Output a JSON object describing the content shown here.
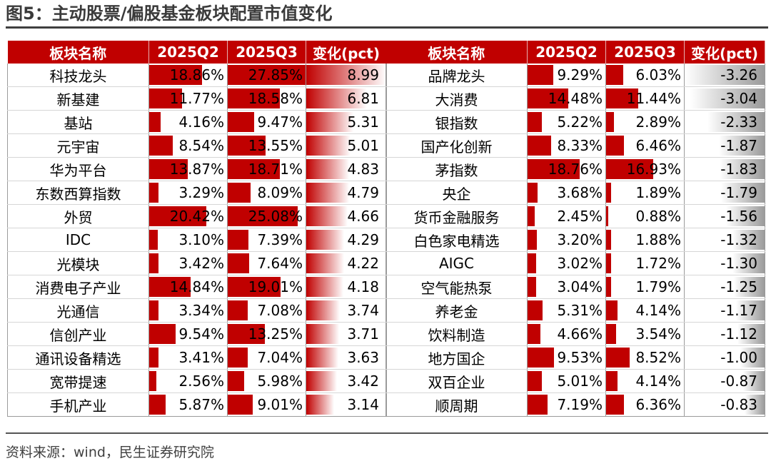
{
  "title": "图5：主动股票/偏股基金板块配置市值变化",
  "source": "资料来源：wind，民生证券研究院",
  "headers": [
    "板块名称",
    "2025Q2",
    "2025Q3",
    "变化(pct)"
  ],
  "colors": {
    "header_bg": "#c00000",
    "bar": "#c00000",
    "neg_gradient": "#9a9a9a"
  },
  "left_rows": [
    {
      "name": "科技龙头",
      "q2": "18.86%",
      "q3": "27.85%",
      "chg": "8.99"
    },
    {
      "name": "新基建",
      "q2": "11.77%",
      "q3": "18.58%",
      "chg": "6.81"
    },
    {
      "name": "基站",
      "q2": "4.16%",
      "q3": "9.47%",
      "chg": "5.31"
    },
    {
      "name": "元宇宙",
      "q2": "8.54%",
      "q3": "13.55%",
      "chg": "5.01"
    },
    {
      "name": "华为平台",
      "q2": "13.87%",
      "q3": "18.71%",
      "chg": "4.83"
    },
    {
      "name": "东数西算指数",
      "q2": "3.29%",
      "q3": "8.09%",
      "chg": "4.79"
    },
    {
      "name": "外贸",
      "q2": "20.42%",
      "q3": "25.08%",
      "chg": "4.66"
    },
    {
      "name": "IDC",
      "q2": "3.10%",
      "q3": "7.39%",
      "chg": "4.29"
    },
    {
      "name": "光模块",
      "q2": "3.42%",
      "q3": "7.64%",
      "chg": "4.22"
    },
    {
      "name": "消费电子产业",
      "q2": "14.84%",
      "q3": "19.01%",
      "chg": "4.18"
    },
    {
      "name": "光通信",
      "q2": "3.34%",
      "q3": "7.08%",
      "chg": "3.74"
    },
    {
      "name": "信创产业",
      "q2": "9.54%",
      "q3": "13.25%",
      "chg": "3.71"
    },
    {
      "name": "通讯设备精选",
      "q2": "3.41%",
      "q3": "7.04%",
      "chg": "3.63"
    },
    {
      "name": "宽带提速",
      "q2": "2.56%",
      "q3": "5.98%",
      "chg": "3.42"
    },
    {
      "name": "手机产业",
      "q2": "5.87%",
      "q3": "9.01%",
      "chg": "3.14"
    }
  ],
  "right_rows": [
    {
      "name": "品牌龙头",
      "q2": "9.29%",
      "q3": "6.03%",
      "chg": "-3.26"
    },
    {
      "name": "大消费",
      "q2": "14.48%",
      "q3": "11.44%",
      "chg": "-3.04"
    },
    {
      "name": "银指数",
      "q2": "5.22%",
      "q3": "2.89%",
      "chg": "-2.33"
    },
    {
      "name": "国产化创新",
      "q2": "8.33%",
      "q3": "6.46%",
      "chg": "-1.87"
    },
    {
      "name": "茅指数",
      "q2": "18.76%",
      "q3": "16.93%",
      "chg": "-1.83"
    },
    {
      "name": "央企",
      "q2": "3.68%",
      "q3": "1.89%",
      "chg": "-1.79"
    },
    {
      "name": "货币金融服务",
      "q2": "2.45%",
      "q3": "0.88%",
      "chg": "-1.56"
    },
    {
      "name": "白色家电精选",
      "q2": "3.20%",
      "q3": "1.88%",
      "chg": "-1.32"
    },
    {
      "name": "AIGC",
      "q2": "3.02%",
      "q3": "1.72%",
      "chg": "-1.30"
    },
    {
      "name": "空气能热泵",
      "q2": "3.04%",
      "q3": "1.79%",
      "chg": "-1.25"
    },
    {
      "name": "养老金",
      "q2": "5.31%",
      "q3": "4.14%",
      "chg": "-1.17"
    },
    {
      "name": "饮料制造",
      "q2": "4.66%",
      "q3": "3.54%",
      "chg": "-1.12"
    },
    {
      "name": "地方国企",
      "q2": "9.53%",
      "q3": "8.52%",
      "chg": "-1.00"
    },
    {
      "name": "双百企业",
      "q2": "5.01%",
      "q3": "4.14%",
      "chg": "-0.87"
    },
    {
      "name": "顺周期",
      "q2": "7.19%",
      "q3": "6.36%",
      "chg": "-0.83"
    }
  ]
}
